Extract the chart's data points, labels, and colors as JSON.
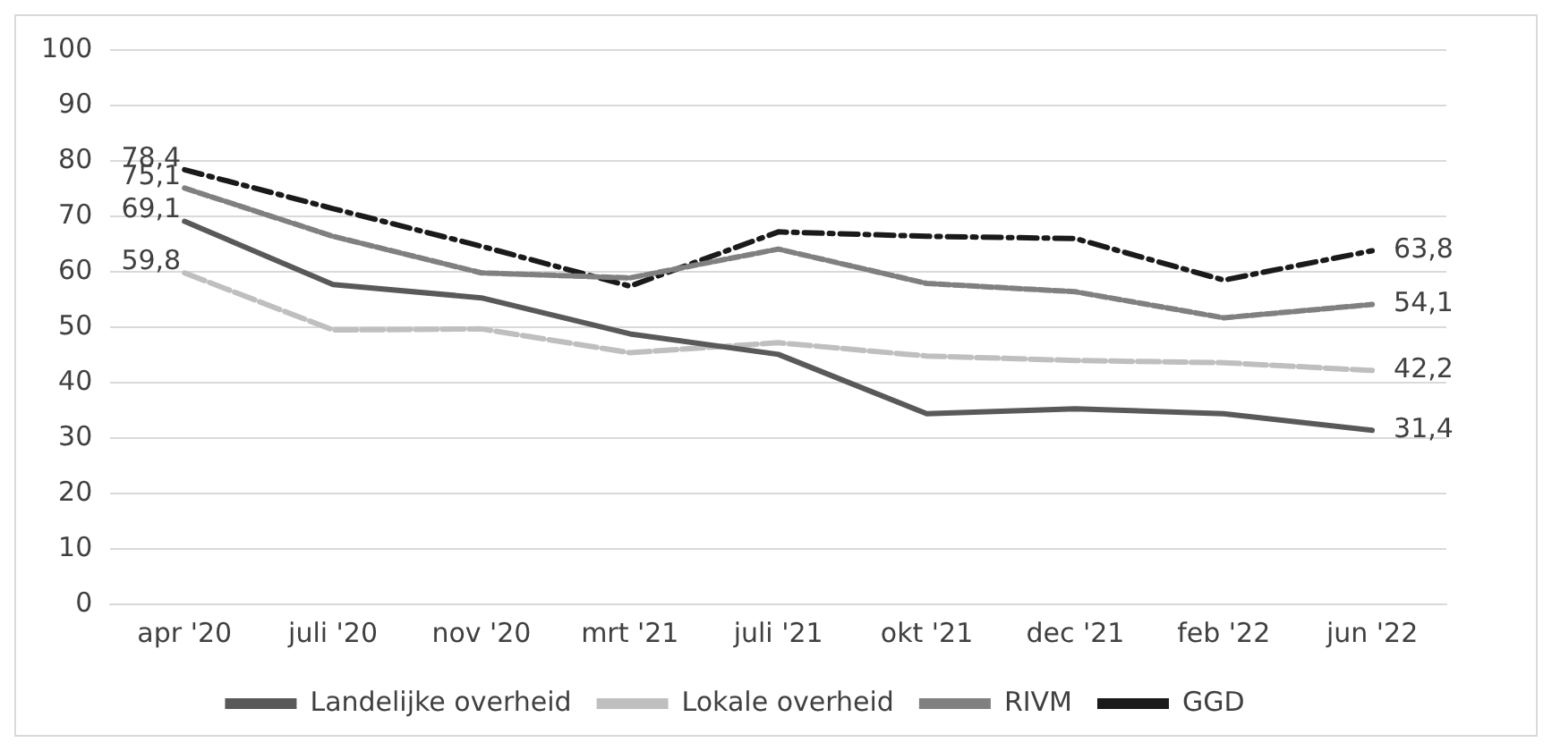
{
  "chart_data": {
    "type": "line",
    "categories": [
      "apr '20",
      "juli '20",
      "nov '20",
      "mrt '21",
      "juli '21",
      "okt '21",
      "dec '21",
      "feb '22",
      "jun '22"
    ],
    "ylim": [
      0,
      100
    ],
    "yticks": [
      0,
      10,
      20,
      30,
      40,
      50,
      60,
      70,
      80,
      90,
      100
    ],
    "grid": "y",
    "legend": "bottom",
    "marker": "none",
    "series": [
      {
        "name": "Landelijke overheid",
        "color": "#595959",
        "line_style": "solid",
        "values": [
          69.1,
          57.7,
          55.3,
          48.8,
          45.1,
          34.4,
          35.3,
          34.4,
          31.4
        ],
        "value_labels": [
          "69,1",
          null,
          null,
          null,
          null,
          null,
          null,
          null,
          "31,4"
        ]
      },
      {
        "name": "Lokale overheid",
        "color": "#bfbfbf",
        "line_style": "dashed",
        "values": [
          59.8,
          49.5,
          49.7,
          45.4,
          47.2,
          44.8,
          44.0,
          43.6,
          42.2
        ],
        "value_labels": [
          "59,8",
          null,
          null,
          null,
          null,
          null,
          null,
          null,
          "42,2"
        ]
      },
      {
        "name": "RIVM",
        "color": "#808080",
        "line_style": "dashed",
        "values": [
          75.1,
          66.4,
          59.8,
          58.9,
          64.1,
          57.9,
          56.4,
          51.7,
          54.1
        ],
        "value_labels": [
          "75,1",
          null,
          null,
          null,
          null,
          null,
          null,
          null,
          "54,1"
        ]
      },
      {
        "name": "GGD",
        "color": "#1a1a1a",
        "line_style": "dashed",
        "values": [
          78.4,
          71.4,
          64.6,
          57.4,
          67.2,
          66.4,
          66.0,
          58.5,
          63.8
        ],
        "value_labels": [
          "78,4",
          null,
          null,
          null,
          null,
          null,
          null,
          null,
          "63,8"
        ]
      }
    ]
  }
}
